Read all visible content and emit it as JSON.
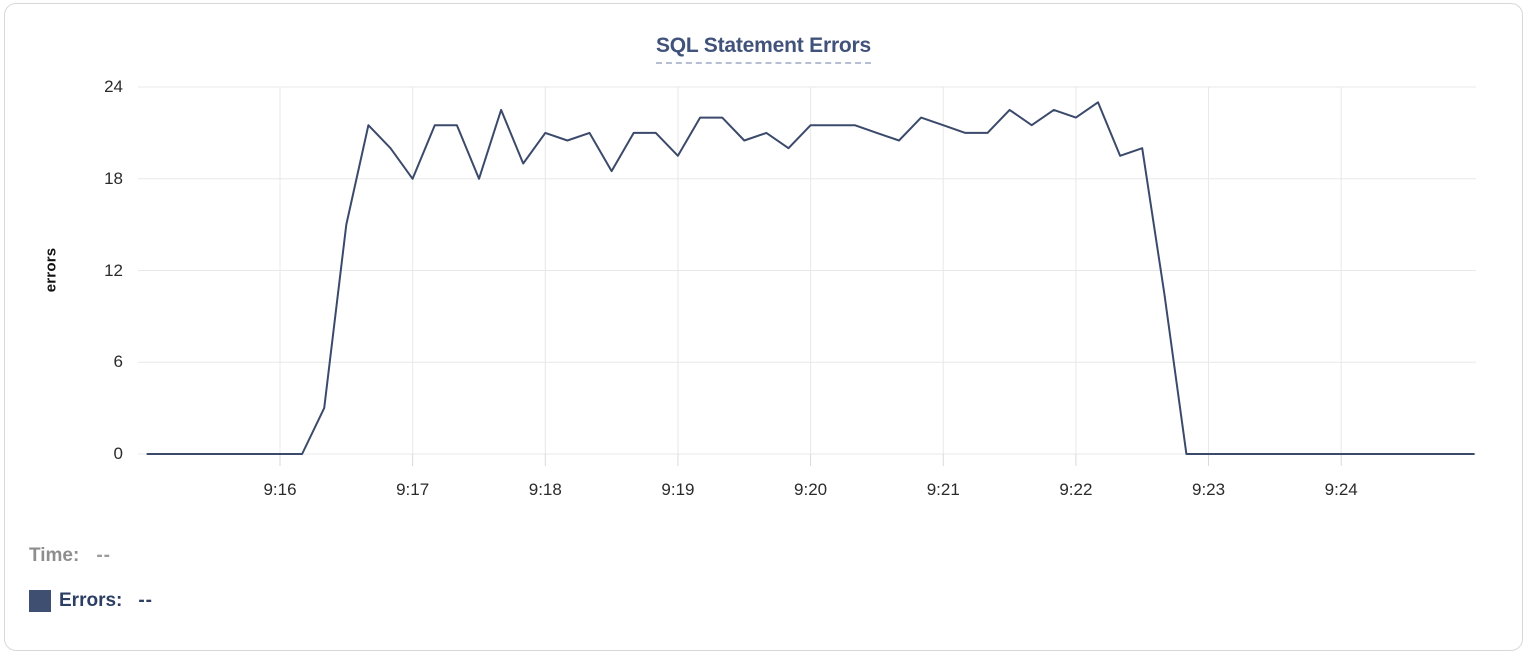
{
  "chart": {
    "title": "SQL Statement Errors",
    "ylabel": "errors"
  },
  "legend": {
    "time_label": "Time:",
    "time_value": "--",
    "errors_label": "Errors:",
    "errors_value": "--"
  },
  "colors": {
    "line": "#3b4a6b",
    "swatch": "#3e4f71",
    "grid": "#e8e8e8",
    "axis_tick": "#d9d9d9",
    "title": "#41537a"
  },
  "chart_data": {
    "type": "line",
    "title": "SQL Statement Errors",
    "xlabel": "",
    "ylabel": "errors",
    "ylim": [
      0,
      24
    ],
    "y_ticks": [
      0,
      6,
      12,
      18,
      24
    ],
    "x_ticks": [
      "9:16",
      "9:17",
      "9:18",
      "9:19",
      "9:20",
      "9:21",
      "9:22",
      "9:23",
      "9:24"
    ],
    "x_range": [
      "9:15:00",
      "9:25:00"
    ],
    "interval_seconds": 10,
    "grid": true,
    "legend_position": "bottom-left",
    "series": [
      {
        "name": "Errors",
        "color": "#3b4a6b",
        "x": [
          "9:15:00",
          "9:15:10",
          "9:15:20",
          "9:15:30",
          "9:15:40",
          "9:15:50",
          "9:16:00",
          "9:16:10",
          "9:16:20",
          "9:16:30",
          "9:16:40",
          "9:16:50",
          "9:17:00",
          "9:17:10",
          "9:17:20",
          "9:17:30",
          "9:17:40",
          "9:17:50",
          "9:18:00",
          "9:18:10",
          "9:18:20",
          "9:18:30",
          "9:18:40",
          "9:18:50",
          "9:19:00",
          "9:19:10",
          "9:19:20",
          "9:19:30",
          "9:19:40",
          "9:19:50",
          "9:20:00",
          "9:20:10",
          "9:20:20",
          "9:20:30",
          "9:20:40",
          "9:20:50",
          "9:21:00",
          "9:21:10",
          "9:21:20",
          "9:21:30",
          "9:21:40",
          "9:21:50",
          "9:22:00",
          "9:22:10",
          "9:22:20",
          "9:22:30",
          "9:22:40",
          "9:22:50",
          "9:23:00",
          "9:23:10",
          "9:23:20",
          "9:23:30",
          "9:23:40",
          "9:23:50",
          "9:24:00",
          "9:24:10",
          "9:24:20",
          "9:24:30",
          "9:24:40",
          "9:24:50",
          "9:25:00"
        ],
        "values": [
          0,
          0,
          0,
          0,
          0,
          0,
          0,
          0,
          3,
          15,
          21.5,
          20,
          18,
          21.5,
          21.5,
          18,
          22.5,
          19,
          21,
          20.5,
          21,
          18.5,
          21,
          21,
          19.5,
          22,
          22,
          20.5,
          21,
          20,
          21.5,
          21.5,
          21.5,
          21,
          20.5,
          22,
          21.5,
          21,
          21,
          22.5,
          21.5,
          22.5,
          22,
          23,
          19.5,
          20,
          10.5,
          0,
          0,
          0,
          0,
          0,
          0,
          0,
          0,
          0,
          0,
          0,
          0,
          0,
          0
        ]
      }
    ]
  }
}
